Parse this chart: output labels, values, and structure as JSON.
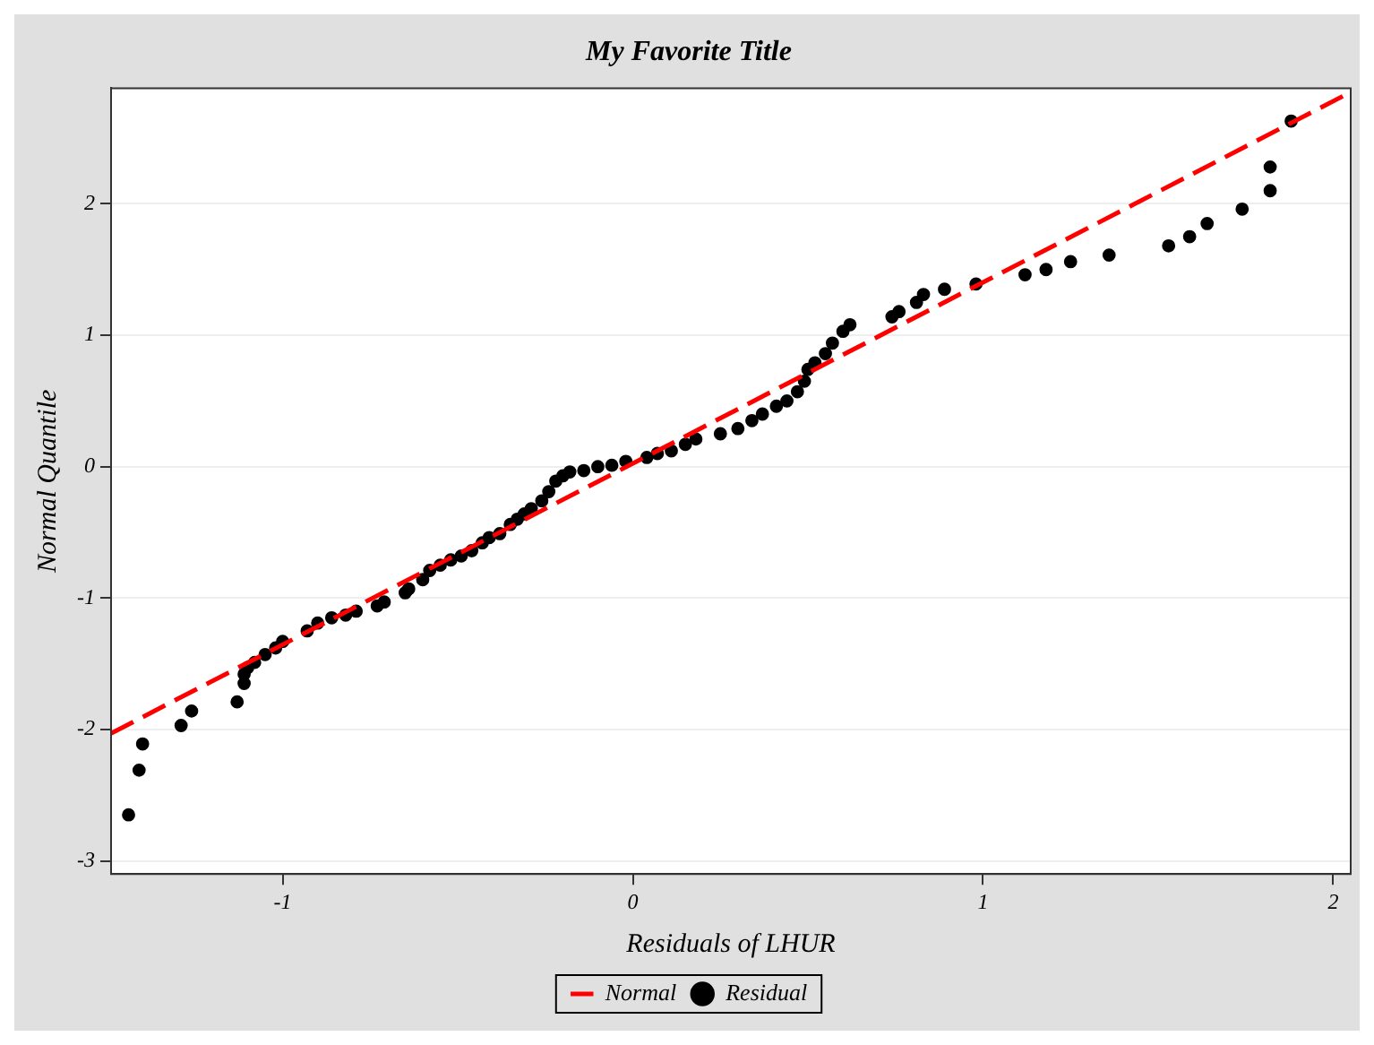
{
  "chart_data": {
    "type": "scatter",
    "title": "My Favorite Title",
    "xlabel": "Residuals of LHUR",
    "ylabel": "Normal Quantile",
    "xlim": [
      -1.49,
      2.05
    ],
    "ylim": [
      -3.1,
      2.88
    ],
    "xticks": [
      -1,
      0,
      1,
      2
    ],
    "yticks": [
      -3,
      -2,
      -1,
      0,
      1,
      2
    ],
    "grid": "y",
    "legend": "bottom",
    "series": [
      {
        "name": "Normal",
        "type": "line",
        "color": "#ff0000",
        "line_style": "dashed",
        "marker": "none",
        "x": [
          -1.49,
          2.05
        ],
        "values": [
          -2.03,
          2.85
        ]
      },
      {
        "name": "Residual",
        "marker": "circle",
        "color": "#000000",
        "x": [
          -1.44,
          -1.41,
          -1.4,
          -1.29,
          -1.26,
          -1.13,
          -1.11,
          -1.11,
          -1.1,
          -1.08,
          -1.05,
          -1.02,
          -1.0,
          -0.93,
          -0.9,
          -0.86,
          -0.82,
          -0.79,
          -0.73,
          -0.71,
          -0.65,
          -0.64,
          -0.6,
          -0.58,
          -0.55,
          -0.52,
          -0.49,
          -0.46,
          -0.43,
          -0.41,
          -0.38,
          -0.35,
          -0.33,
          -0.31,
          -0.29,
          -0.26,
          -0.24,
          -0.22,
          -0.2,
          -0.18,
          -0.14,
          -0.1,
          -0.06,
          -0.02,
          0.04,
          0.07,
          0.11,
          0.15,
          0.18,
          0.25,
          0.3,
          0.34,
          0.37,
          0.41,
          0.44,
          0.47,
          0.49,
          0.5,
          0.52,
          0.55,
          0.57,
          0.6,
          0.62,
          0.74,
          0.76,
          0.81,
          0.83,
          0.89,
          0.98,
          1.12,
          1.18,
          1.25,
          1.36,
          1.53,
          1.59,
          1.64,
          1.74,
          1.82,
          1.82,
          1.88
        ],
        "values": [
          -2.65,
          -2.31,
          -2.11,
          -1.97,
          -1.86,
          -1.79,
          -1.65,
          -1.58,
          -1.53,
          -1.49,
          -1.43,
          -1.38,
          -1.33,
          -1.25,
          -1.19,
          -1.15,
          -1.13,
          -1.1,
          -1.06,
          -1.03,
          -0.96,
          -0.93,
          -0.86,
          -0.79,
          -0.75,
          -0.71,
          -0.68,
          -0.64,
          -0.58,
          -0.54,
          -0.51,
          -0.44,
          -0.4,
          -0.36,
          -0.32,
          -0.26,
          -0.19,
          -0.11,
          -0.07,
          -0.04,
          -0.03,
          0.0,
          0.01,
          0.04,
          0.07,
          0.1,
          0.12,
          0.17,
          0.21,
          0.25,
          0.29,
          0.35,
          0.4,
          0.46,
          0.5,
          0.57,
          0.65,
          0.74,
          0.79,
          0.86,
          0.94,
          1.03,
          1.08,
          1.14,
          1.18,
          1.25,
          1.31,
          1.35,
          1.39,
          1.46,
          1.5,
          1.56,
          1.61,
          1.68,
          1.75,
          1.85,
          1.96,
          2.1,
          2.28,
          2.63
        ]
      }
    ]
  }
}
